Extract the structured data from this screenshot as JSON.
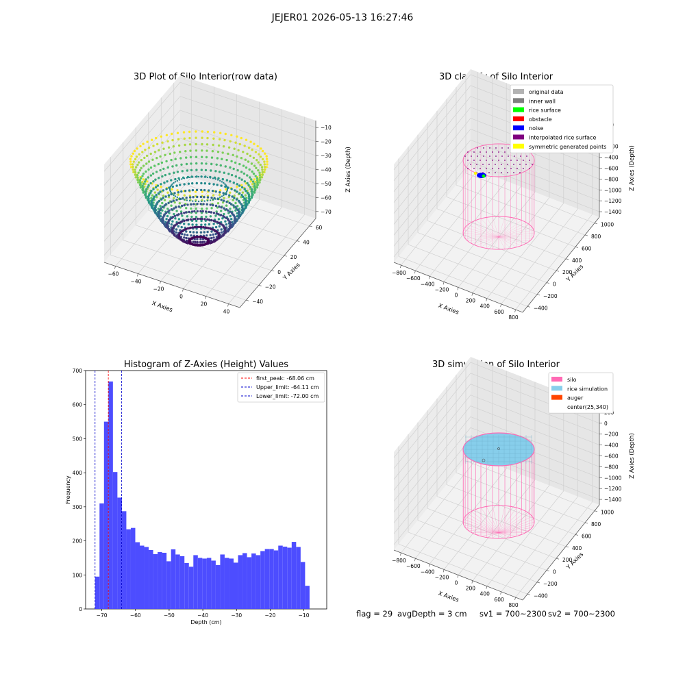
{
  "figure": {
    "suptitle": "JEJER01 2026-05-13 16:27:46",
    "status": {
      "flag": "flag = 29",
      "avg_depth": "avgDepth = 3 cm",
      "sv1": "sv1 = 700~2300",
      "sv2": "sv2 = 700~2300"
    }
  },
  "colors": {
    "histogram_bar": "#4d4dff",
    "first_peak_line": "#ff0000",
    "limit_lines": "#0000cc",
    "silo_pink": "#ff69b4",
    "rice_blue": "#87ceeb",
    "viridis_low": "#440154",
    "viridis_mid": "#21918c",
    "viridis_high": "#fde725"
  },
  "chart_data": [
    {
      "type": "scatter",
      "projection": "3d",
      "title": "3D Plot of Silo Interior(row data)",
      "xlabel": "X Axies",
      "ylabel": "Y Axies",
      "zlabel": "Z Axies (Depth)",
      "x_ticks": [
        "−60",
        "−40",
        "−20",
        "0",
        "20",
        "40"
      ],
      "y_ticks": [
        "−40",
        "−20",
        "0",
        "20",
        "40",
        "60"
      ],
      "z_ticks": [
        "−10",
        "−20",
        "−30",
        "−40",
        "−50",
        "−60",
        "−70"
      ],
      "xlim": [
        -65,
        55
      ],
      "ylim": [
        -50,
        65
      ],
      "zlim": [
        -76,
        -5
      ],
      "colormap": "viridis",
      "shape": "bowl"
    },
    {
      "type": "scatter",
      "projection": "3d",
      "title": "3D classify of Silo Interior",
      "xlabel": "X Axies",
      "ylabel": "Y Axies",
      "zlabel": "Z Axies (Depth)",
      "x_ticks": [
        "−800",
        "−600",
        "−400",
        "−200",
        "0",
        "200",
        "400",
        "600",
        "800"
      ],
      "y_ticks": [
        "−400",
        "−200",
        "0",
        "200",
        "400",
        "600",
        "800",
        "1000"
      ],
      "z_ticks": [
        "200",
        "0",
        "−200",
        "−400",
        "−600",
        "−800",
        "−1000",
        "−1200",
        "−1400"
      ],
      "legend": [
        {
          "label": "original data",
          "color": "#b3b3b3"
        },
        {
          "label": "inner wall",
          "color": "#808080"
        },
        {
          "label": "rice surface",
          "color": "#00ff00"
        },
        {
          "label": "obstacle",
          "color": "#ff0000"
        },
        {
          "label": "noise",
          "color": "#0000ff"
        },
        {
          "label": "interpolated rice surface",
          "color": "#800080"
        },
        {
          "label": "symmetric generated points",
          "color": "#ffff00"
        }
      ],
      "legend_position": "upper right"
    },
    {
      "type": "bar",
      "title": "Histogram of Z-Axies (Height) Values",
      "xlabel": "Depth (cm)",
      "ylabel": "Frequency",
      "xlim": [
        -74.8,
        -3.2
      ],
      "ylim": [
        0,
        700
      ],
      "x_ticks": [
        -70,
        -60,
        -50,
        -40,
        -30,
        -20,
        -10
      ],
      "y_ticks": [
        0,
        100,
        200,
        300,
        400,
        500,
        600,
        700
      ],
      "bin_start": -72.0,
      "bin_width": 1.327,
      "values": [
        95,
        310,
        550,
        668,
        402,
        327,
        287,
        234,
        238,
        196,
        186,
        182,
        173,
        161,
        167,
        165,
        140,
        175,
        160,
        155,
        135,
        124,
        158,
        150,
        148,
        150,
        142,
        129,
        160,
        150,
        148,
        136,
        158,
        164,
        152,
        163,
        158,
        170,
        176,
        176,
        172,
        186,
        183,
        180,
        197,
        182,
        138,
        68
      ],
      "vlines": [
        {
          "x": -68.06,
          "label": "first_peak: -68.06 cm",
          "color": "#ff0000"
        },
        {
          "x": -64.11,
          "label": "Upper_limit: -64.11 cm",
          "color": "#0000cc"
        },
        {
          "x": -72.0,
          "label": "Lower_limit: -72.00 cm",
          "color": "#0000cc"
        }
      ],
      "legend_position": "upper right",
      "grid": false
    },
    {
      "type": "scatter",
      "projection": "3d",
      "title": "3D simulation of Silo Interior",
      "xlabel": "X Axies",
      "ylabel": "Y Axies",
      "zlabel": "Z Axies (Depth)",
      "x_ticks": [
        "−800",
        "−600",
        "−400",
        "−200",
        "0",
        "200",
        "400",
        "600",
        "800"
      ],
      "y_ticks": [
        "−400",
        "−200",
        "0",
        "200",
        "400",
        "600",
        "800",
        "1000"
      ],
      "z_ticks": [
        "200",
        "0",
        "−200",
        "−400",
        "−600",
        "−800",
        "−1000",
        "−1200",
        "−1400"
      ],
      "legend": [
        {
          "label": "silo",
          "color": "#ff69b4"
        },
        {
          "label": "rice simulation",
          "color": "#87ceeb"
        },
        {
          "label": "auger",
          "color": "#ff4500"
        },
        {
          "label": "center(25,340)",
          "color": ""
        }
      ],
      "legend_position": "upper right"
    }
  ]
}
